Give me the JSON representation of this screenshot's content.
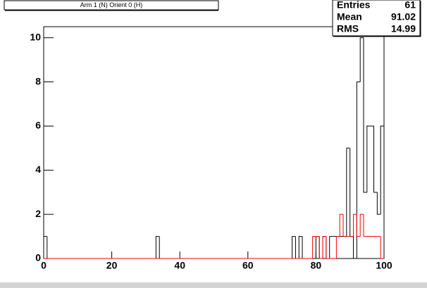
{
  "chart_data": {
    "type": "histogram",
    "title": "Arm 1 (N) Orient 0 (H)",
    "bins": [
      0,
      1,
      33,
      34,
      73,
      74,
      75,
      76,
      79,
      80,
      81,
      82,
      83,
      84,
      85,
      86,
      87,
      88,
      89,
      90,
      91,
      92,
      93,
      94,
      95,
      96,
      97,
      98,
      99,
      100
    ],
    "series": [
      {
        "color": "#000000",
        "values": [
          1,
          0,
          1,
          0,
          1,
          0,
          1,
          0,
          0,
          1,
          0,
          1,
          0,
          1,
          1,
          1,
          1,
          1,
          5,
          1,
          0,
          8,
          10,
          3,
          6,
          6,
          3,
          2,
          6
        ]
      },
      {
        "color": "#ff0000",
        "values": [
          0,
          0,
          0,
          0,
          0,
          0,
          0,
          0,
          1,
          1,
          0,
          1,
          0,
          0,
          0,
          1,
          2,
          1,
          1,
          1,
          2,
          1,
          2,
          1,
          1,
          1,
          1,
          1,
          0
        ]
      }
    ],
    "xlim": [
      0,
      100
    ],
    "xticks": [
      0,
      20,
      40,
      60,
      80,
      100
    ],
    "ylim": [
      0,
      10.5
    ],
    "yticks": [
      0,
      2,
      4,
      6,
      8,
      10
    ],
    "stats": [
      [
        "Entries",
        "61"
      ],
      [
        "Mean",
        "91.02"
      ],
      [
        "RMS",
        "14.99"
      ]
    ]
  }
}
